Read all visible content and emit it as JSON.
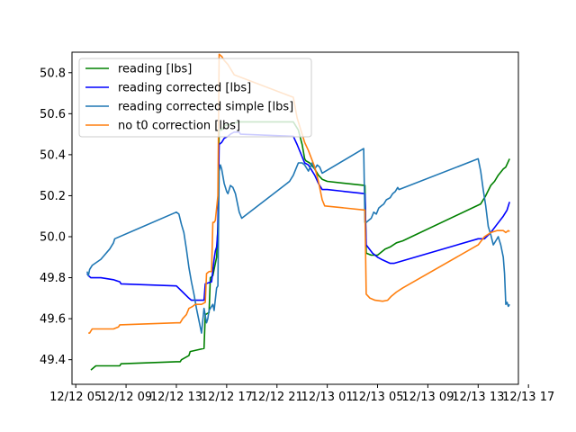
{
  "chart_data": {
    "type": "line",
    "title": "",
    "xlabel": "",
    "ylabel": "",
    "xlim": [
      4.7,
      40.2
    ],
    "ylim": [
      49.28,
      50.9
    ],
    "x_ticks": [
      {
        "value": 5,
        "label": "12/12 05"
      },
      {
        "value": 9,
        "label": "12/12 09"
      },
      {
        "value": 13,
        "label": "12/12 13"
      },
      {
        "value": 17,
        "label": "12/12 17"
      },
      {
        "value": 21,
        "label": "12/12 21"
      },
      {
        "value": 25,
        "label": "12/13 01"
      },
      {
        "value": 29,
        "label": "12/13 05"
      },
      {
        "value": 33,
        "label": "12/13 09"
      },
      {
        "value": 37,
        "label": "12/13 13"
      },
      {
        "value": 41,
        "label": "12/13 17"
      }
    ],
    "y_ticks": [
      49.4,
      49.6,
      49.8,
      50.0,
      50.2,
      50.4,
      50.6,
      50.8
    ],
    "legend_position": "upper-left",
    "grid": false,
    "series": [
      {
        "name": "reading [lbs]",
        "color": "#008000",
        "points": [
          [
            6.2,
            49.35
          ],
          [
            6.4,
            49.36
          ],
          [
            6.6,
            49.37
          ],
          [
            7.0,
            49.37
          ],
          [
            8.0,
            49.37
          ],
          [
            8.5,
            49.37
          ],
          [
            8.6,
            49.38
          ],
          [
            13.0,
            49.39
          ],
          [
            13.3,
            49.39
          ],
          [
            13.4,
            49.4
          ],
          [
            14.0,
            49.42
          ],
          [
            14.1,
            49.44
          ],
          [
            15.2,
            49.455
          ],
          [
            15.3,
            49.62
          ],
          [
            15.6,
            49.63
          ],
          [
            15.7,
            49.8
          ],
          [
            15.9,
            49.81
          ],
          [
            16.0,
            49.84
          ],
          [
            16.2,
            49.9
          ],
          [
            16.3,
            50.05
          ],
          [
            16.4,
            50.52
          ],
          [
            16.6,
            50.52
          ],
          [
            16.8,
            50.54
          ],
          [
            17.3,
            50.55
          ],
          [
            18.0,
            50.56
          ],
          [
            19.0,
            50.56
          ],
          [
            22.3,
            50.56
          ],
          [
            22.7,
            50.52
          ],
          [
            23.0,
            50.45
          ],
          [
            23.2,
            50.38
          ],
          [
            23.3,
            50.37
          ],
          [
            23.6,
            50.36
          ],
          [
            24.0,
            50.33
          ],
          [
            24.3,
            50.3
          ],
          [
            24.6,
            50.28
          ],
          [
            25.0,
            50.27
          ],
          [
            28.0,
            50.25
          ],
          [
            28.1,
            49.92
          ],
          [
            28.5,
            49.91
          ],
          [
            29.0,
            49.91
          ],
          [
            29.6,
            49.94
          ],
          [
            30.0,
            49.95
          ],
          [
            30.5,
            49.97
          ],
          [
            31.0,
            49.98
          ],
          [
            37.2,
            50.16
          ],
          [
            37.6,
            50.2
          ],
          [
            38.0,
            50.25
          ],
          [
            38.3,
            50.27
          ],
          [
            38.6,
            50.3
          ],
          [
            39.0,
            50.33
          ],
          [
            39.2,
            50.34
          ],
          [
            39.5,
            50.38
          ]
        ]
      },
      {
        "name": "reading corrected [lbs]",
        "color": "#0000ff",
        "points": [
          [
            5.9,
            49.82
          ],
          [
            6.0,
            49.81
          ],
          [
            6.2,
            49.8
          ],
          [
            7.0,
            49.8
          ],
          [
            8.0,
            49.79
          ],
          [
            8.5,
            49.78
          ],
          [
            8.6,
            49.77
          ],
          [
            13.0,
            49.76
          ],
          [
            13.5,
            49.73
          ],
          [
            14.0,
            49.7
          ],
          [
            14.2,
            49.69
          ],
          [
            14.8,
            49.69
          ],
          [
            15.2,
            49.69
          ],
          [
            15.3,
            49.77
          ],
          [
            15.8,
            49.78
          ],
          [
            16.0,
            49.89
          ],
          [
            16.1,
            49.93
          ],
          [
            16.2,
            49.95
          ],
          [
            16.3,
            50.03
          ],
          [
            16.4,
            50.45
          ],
          [
            16.6,
            50.46
          ],
          [
            16.8,
            50.48
          ],
          [
            17.1,
            50.49
          ],
          [
            17.3,
            50.5
          ],
          [
            17.6,
            50.51
          ],
          [
            18.0,
            50.51
          ],
          [
            18.1,
            50.5
          ],
          [
            22.3,
            50.49
          ],
          [
            22.6,
            50.45
          ],
          [
            23.0,
            50.39
          ],
          [
            23.2,
            50.36
          ],
          [
            23.5,
            50.35
          ],
          [
            24.0,
            50.3
          ],
          [
            24.3,
            50.26
          ],
          [
            24.6,
            50.23
          ],
          [
            25.0,
            50.23
          ],
          [
            28.0,
            50.21
          ],
          [
            28.1,
            49.96
          ],
          [
            28.6,
            49.92
          ],
          [
            29.0,
            49.9
          ],
          [
            29.3,
            49.89
          ],
          [
            30.0,
            49.87
          ],
          [
            30.3,
            49.87
          ],
          [
            37.0,
            49.99
          ],
          [
            37.5,
            49.99
          ],
          [
            38.0,
            50.02
          ],
          [
            38.5,
            50.06
          ],
          [
            39.0,
            50.1
          ],
          [
            39.3,
            50.13
          ],
          [
            39.5,
            50.17
          ]
        ]
      },
      {
        "name": "reading corrected simple [lbs]",
        "color": "#1f77b4",
        "points": [
          [
            5.9,
            49.83
          ],
          [
            6.0,
            49.81
          ],
          [
            6.1,
            49.84
          ],
          [
            6.3,
            49.86
          ],
          [
            7.0,
            49.89
          ],
          [
            7.7,
            49.94
          ],
          [
            8.0,
            49.97
          ],
          [
            8.1,
            49.99
          ],
          [
            13.0,
            50.12
          ],
          [
            13.2,
            50.11
          ],
          [
            13.4,
            50.06
          ],
          [
            13.6,
            50.02
          ],
          [
            13.8,
            49.94
          ],
          [
            14.0,
            49.85
          ],
          [
            14.2,
            49.78
          ],
          [
            14.4,
            49.72
          ],
          [
            14.6,
            49.65
          ],
          [
            14.9,
            49.56
          ],
          [
            15.0,
            49.53
          ],
          [
            15.2,
            49.65
          ],
          [
            15.4,
            49.58
          ],
          [
            15.5,
            49.6
          ],
          [
            15.6,
            49.64
          ],
          [
            15.8,
            49.66
          ],
          [
            15.9,
            49.67
          ],
          [
            16.0,
            49.64
          ],
          [
            16.2,
            49.75
          ],
          [
            16.3,
            49.76
          ],
          [
            16.4,
            50.32
          ],
          [
            16.5,
            50.35
          ],
          [
            16.6,
            50.33
          ],
          [
            16.8,
            50.26
          ],
          [
            17.0,
            50.22
          ],
          [
            17.1,
            50.21
          ],
          [
            17.3,
            50.25
          ],
          [
            17.5,
            50.24
          ],
          [
            17.7,
            50.21
          ],
          [
            17.9,
            50.15
          ],
          [
            18.0,
            50.12
          ],
          [
            18.2,
            50.09
          ],
          [
            21.8,
            50.26
          ],
          [
            22.0,
            50.27
          ],
          [
            22.3,
            50.3
          ],
          [
            22.5,
            50.33
          ],
          [
            22.7,
            50.36
          ],
          [
            23.0,
            50.36
          ],
          [
            23.2,
            50.35
          ],
          [
            23.5,
            50.32
          ],
          [
            23.8,
            50.36
          ],
          [
            24.0,
            50.33
          ],
          [
            24.2,
            50.35
          ],
          [
            24.4,
            50.34
          ],
          [
            24.6,
            50.31
          ],
          [
            27.9,
            50.43
          ],
          [
            28.0,
            50.07
          ],
          [
            28.1,
            50.07
          ],
          [
            28.3,
            50.08
          ],
          [
            28.5,
            50.09
          ],
          [
            28.7,
            50.12
          ],
          [
            28.9,
            50.11
          ],
          [
            29.1,
            50.14
          ],
          [
            29.3,
            50.15
          ],
          [
            29.5,
            50.16
          ],
          [
            29.7,
            50.18
          ],
          [
            30.0,
            50.19
          ],
          [
            30.2,
            50.21
          ],
          [
            30.4,
            50.22
          ],
          [
            30.6,
            50.24
          ],
          [
            30.7,
            50.23
          ],
          [
            37.0,
            50.38
          ],
          [
            37.2,
            50.32
          ],
          [
            37.4,
            50.23
          ],
          [
            37.6,
            50.15
          ],
          [
            37.8,
            50.05
          ],
          [
            38.0,
            50.01
          ],
          [
            38.2,
            49.96
          ],
          [
            38.4,
            49.98
          ],
          [
            38.6,
            50.0
          ],
          [
            38.8,
            49.96
          ],
          [
            39.0,
            49.9
          ],
          [
            39.1,
            49.82
          ],
          [
            39.2,
            49.67
          ],
          [
            39.3,
            49.68
          ],
          [
            39.4,
            49.66
          ],
          [
            39.5,
            49.67
          ]
        ]
      },
      {
        "name": "no t0 correction [lbs]",
        "color": "#ff7f0e",
        "points": [
          [
            6.0,
            49.53
          ],
          [
            6.1,
            49.53
          ],
          [
            6.3,
            49.55
          ],
          [
            7.0,
            49.55
          ],
          [
            8.0,
            49.55
          ],
          [
            8.4,
            49.56
          ],
          [
            8.5,
            49.57
          ],
          [
            13.0,
            49.58
          ],
          [
            13.3,
            49.58
          ],
          [
            13.5,
            49.6
          ],
          [
            13.8,
            49.62
          ],
          [
            14.0,
            49.65
          ],
          [
            14.3,
            49.66
          ],
          [
            14.5,
            49.67
          ],
          [
            15.0,
            49.67
          ],
          [
            15.3,
            49.68
          ],
          [
            15.4,
            49.82
          ],
          [
            15.6,
            49.83
          ],
          [
            15.8,
            49.83
          ],
          [
            15.9,
            50.07
          ],
          [
            16.0,
            50.07
          ],
          [
            16.1,
            50.08
          ],
          [
            16.3,
            50.2
          ],
          [
            16.4,
            50.89
          ],
          [
            16.6,
            50.88
          ],
          [
            16.8,
            50.86
          ],
          [
            17.1,
            50.84
          ],
          [
            17.3,
            50.82
          ],
          [
            17.6,
            50.79
          ],
          [
            22.3,
            50.68
          ],
          [
            22.6,
            50.58
          ],
          [
            23.0,
            50.5
          ],
          [
            23.2,
            50.46
          ],
          [
            23.5,
            50.42
          ],
          [
            24.0,
            50.34
          ],
          [
            24.3,
            50.27
          ],
          [
            24.6,
            50.18
          ],
          [
            24.8,
            50.15
          ],
          [
            28.0,
            50.13
          ],
          [
            28.1,
            49.72
          ],
          [
            28.4,
            49.7
          ],
          [
            28.8,
            49.69
          ],
          [
            29.4,
            49.685
          ],
          [
            29.8,
            49.69
          ],
          [
            30.1,
            49.71
          ],
          [
            30.5,
            49.73
          ],
          [
            31.0,
            49.75
          ],
          [
            37.0,
            49.96
          ],
          [
            37.5,
            50.0
          ],
          [
            38.0,
            50.02
          ],
          [
            38.5,
            50.03
          ],
          [
            39.0,
            50.03
          ],
          [
            39.2,
            50.02
          ],
          [
            39.4,
            50.03
          ],
          [
            39.5,
            50.025
          ]
        ]
      }
    ]
  }
}
